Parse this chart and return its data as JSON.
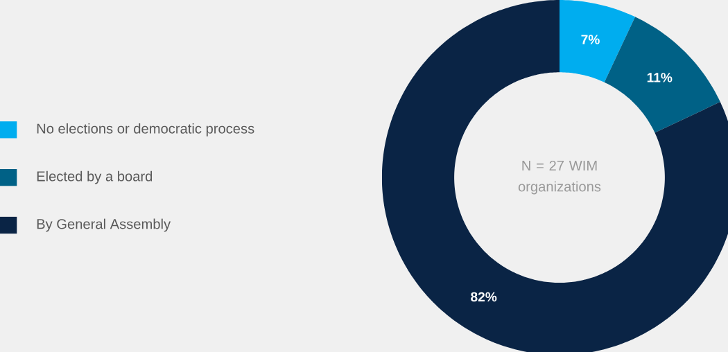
{
  "chart_data": {
    "type": "donut",
    "categories": [
      "No elections or democratic process",
      "Elected by a board",
      "By General Assembly"
    ],
    "values": [
      7,
      11,
      82
    ],
    "colors": [
      "#00adef",
      "#006186",
      "#0a2445"
    ],
    "value_labels": [
      "7%",
      "11%",
      "82%"
    ],
    "legend": "left",
    "annotations": [
      "N = 27 WIM organizations"
    ]
  }
}
